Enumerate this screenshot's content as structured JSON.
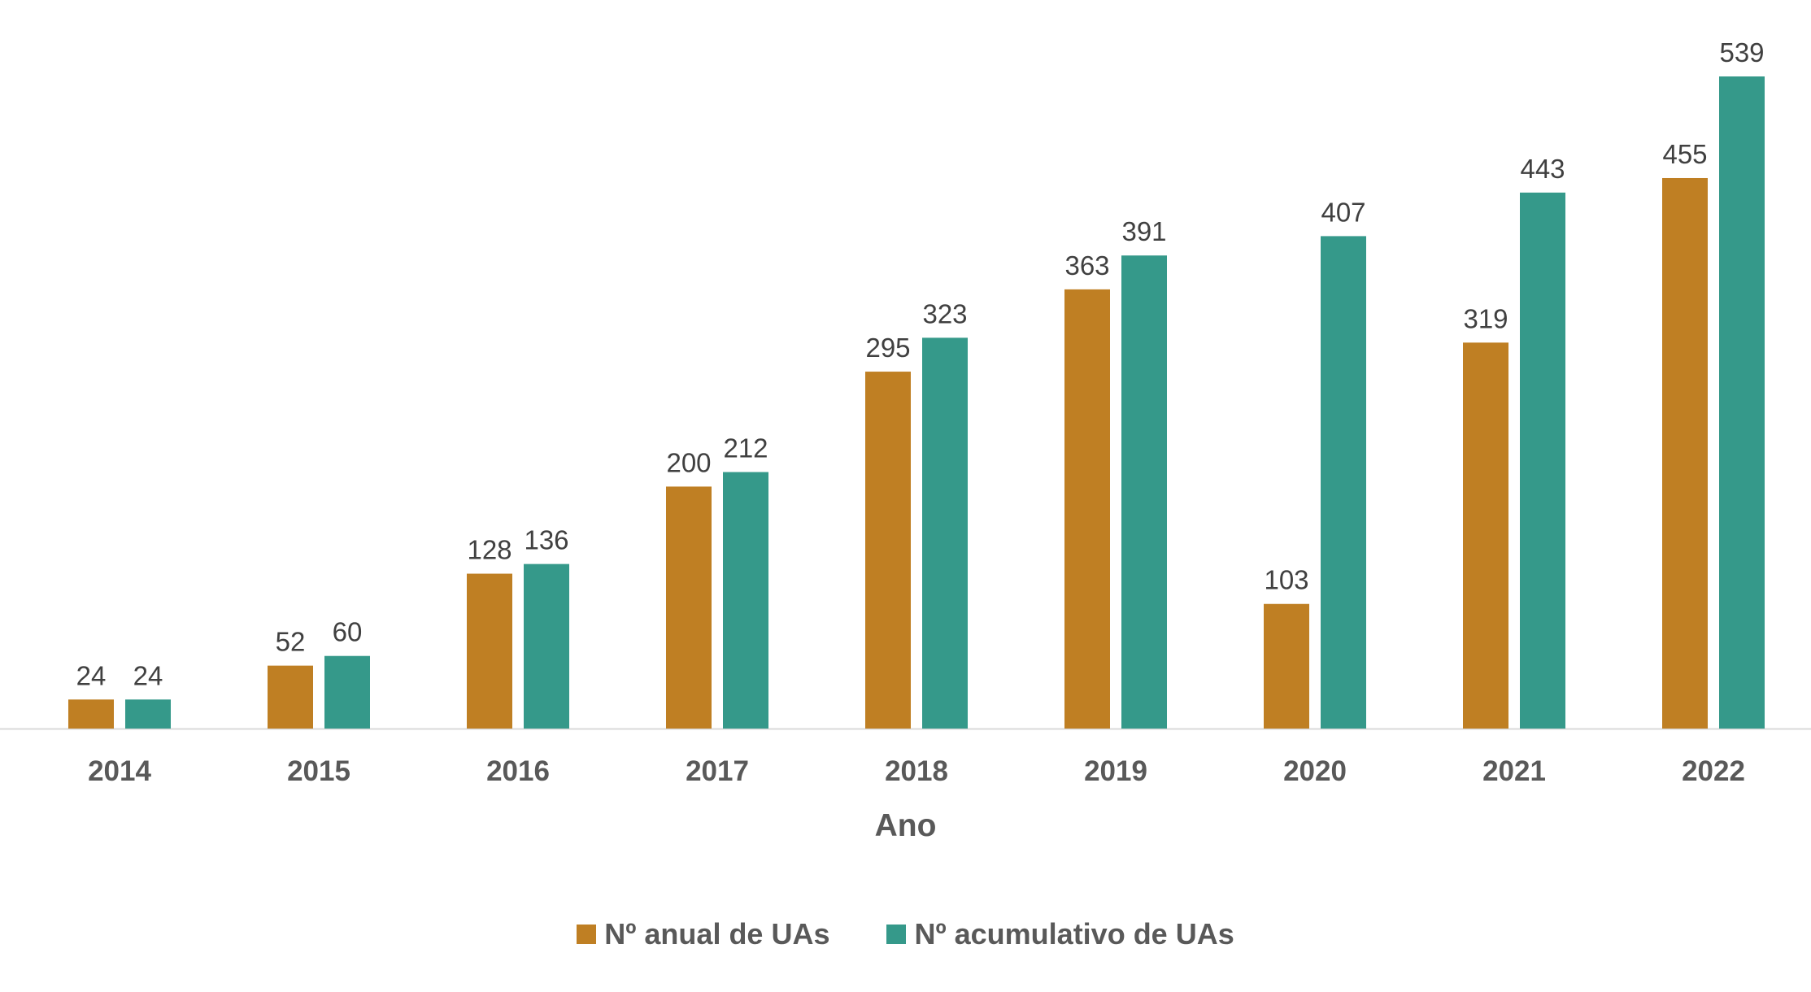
{
  "chart_data": {
    "type": "bar",
    "categories": [
      "2014",
      "2015",
      "2016",
      "2017",
      "2018",
      "2019",
      "2020",
      "2021",
      "2022"
    ],
    "series": [
      {
        "name": "Nº anual de UAs",
        "color": "#BF7F23",
        "values": [
          24,
          52,
          128,
          200,
          295,
          363,
          103,
          319,
          455
        ]
      },
      {
        "name": "Nº acumulativo de UAs",
        "color": "#35998A",
        "values": [
          24,
          60,
          136,
          212,
          323,
          391,
          407,
          443,
          539
        ]
      }
    ],
    "title": "",
    "xlabel": "Ano",
    "ylabel": "",
    "ylim": [
      0,
      539
    ],
    "grid": false,
    "data_labels": true,
    "legend_position": "bottom"
  }
}
